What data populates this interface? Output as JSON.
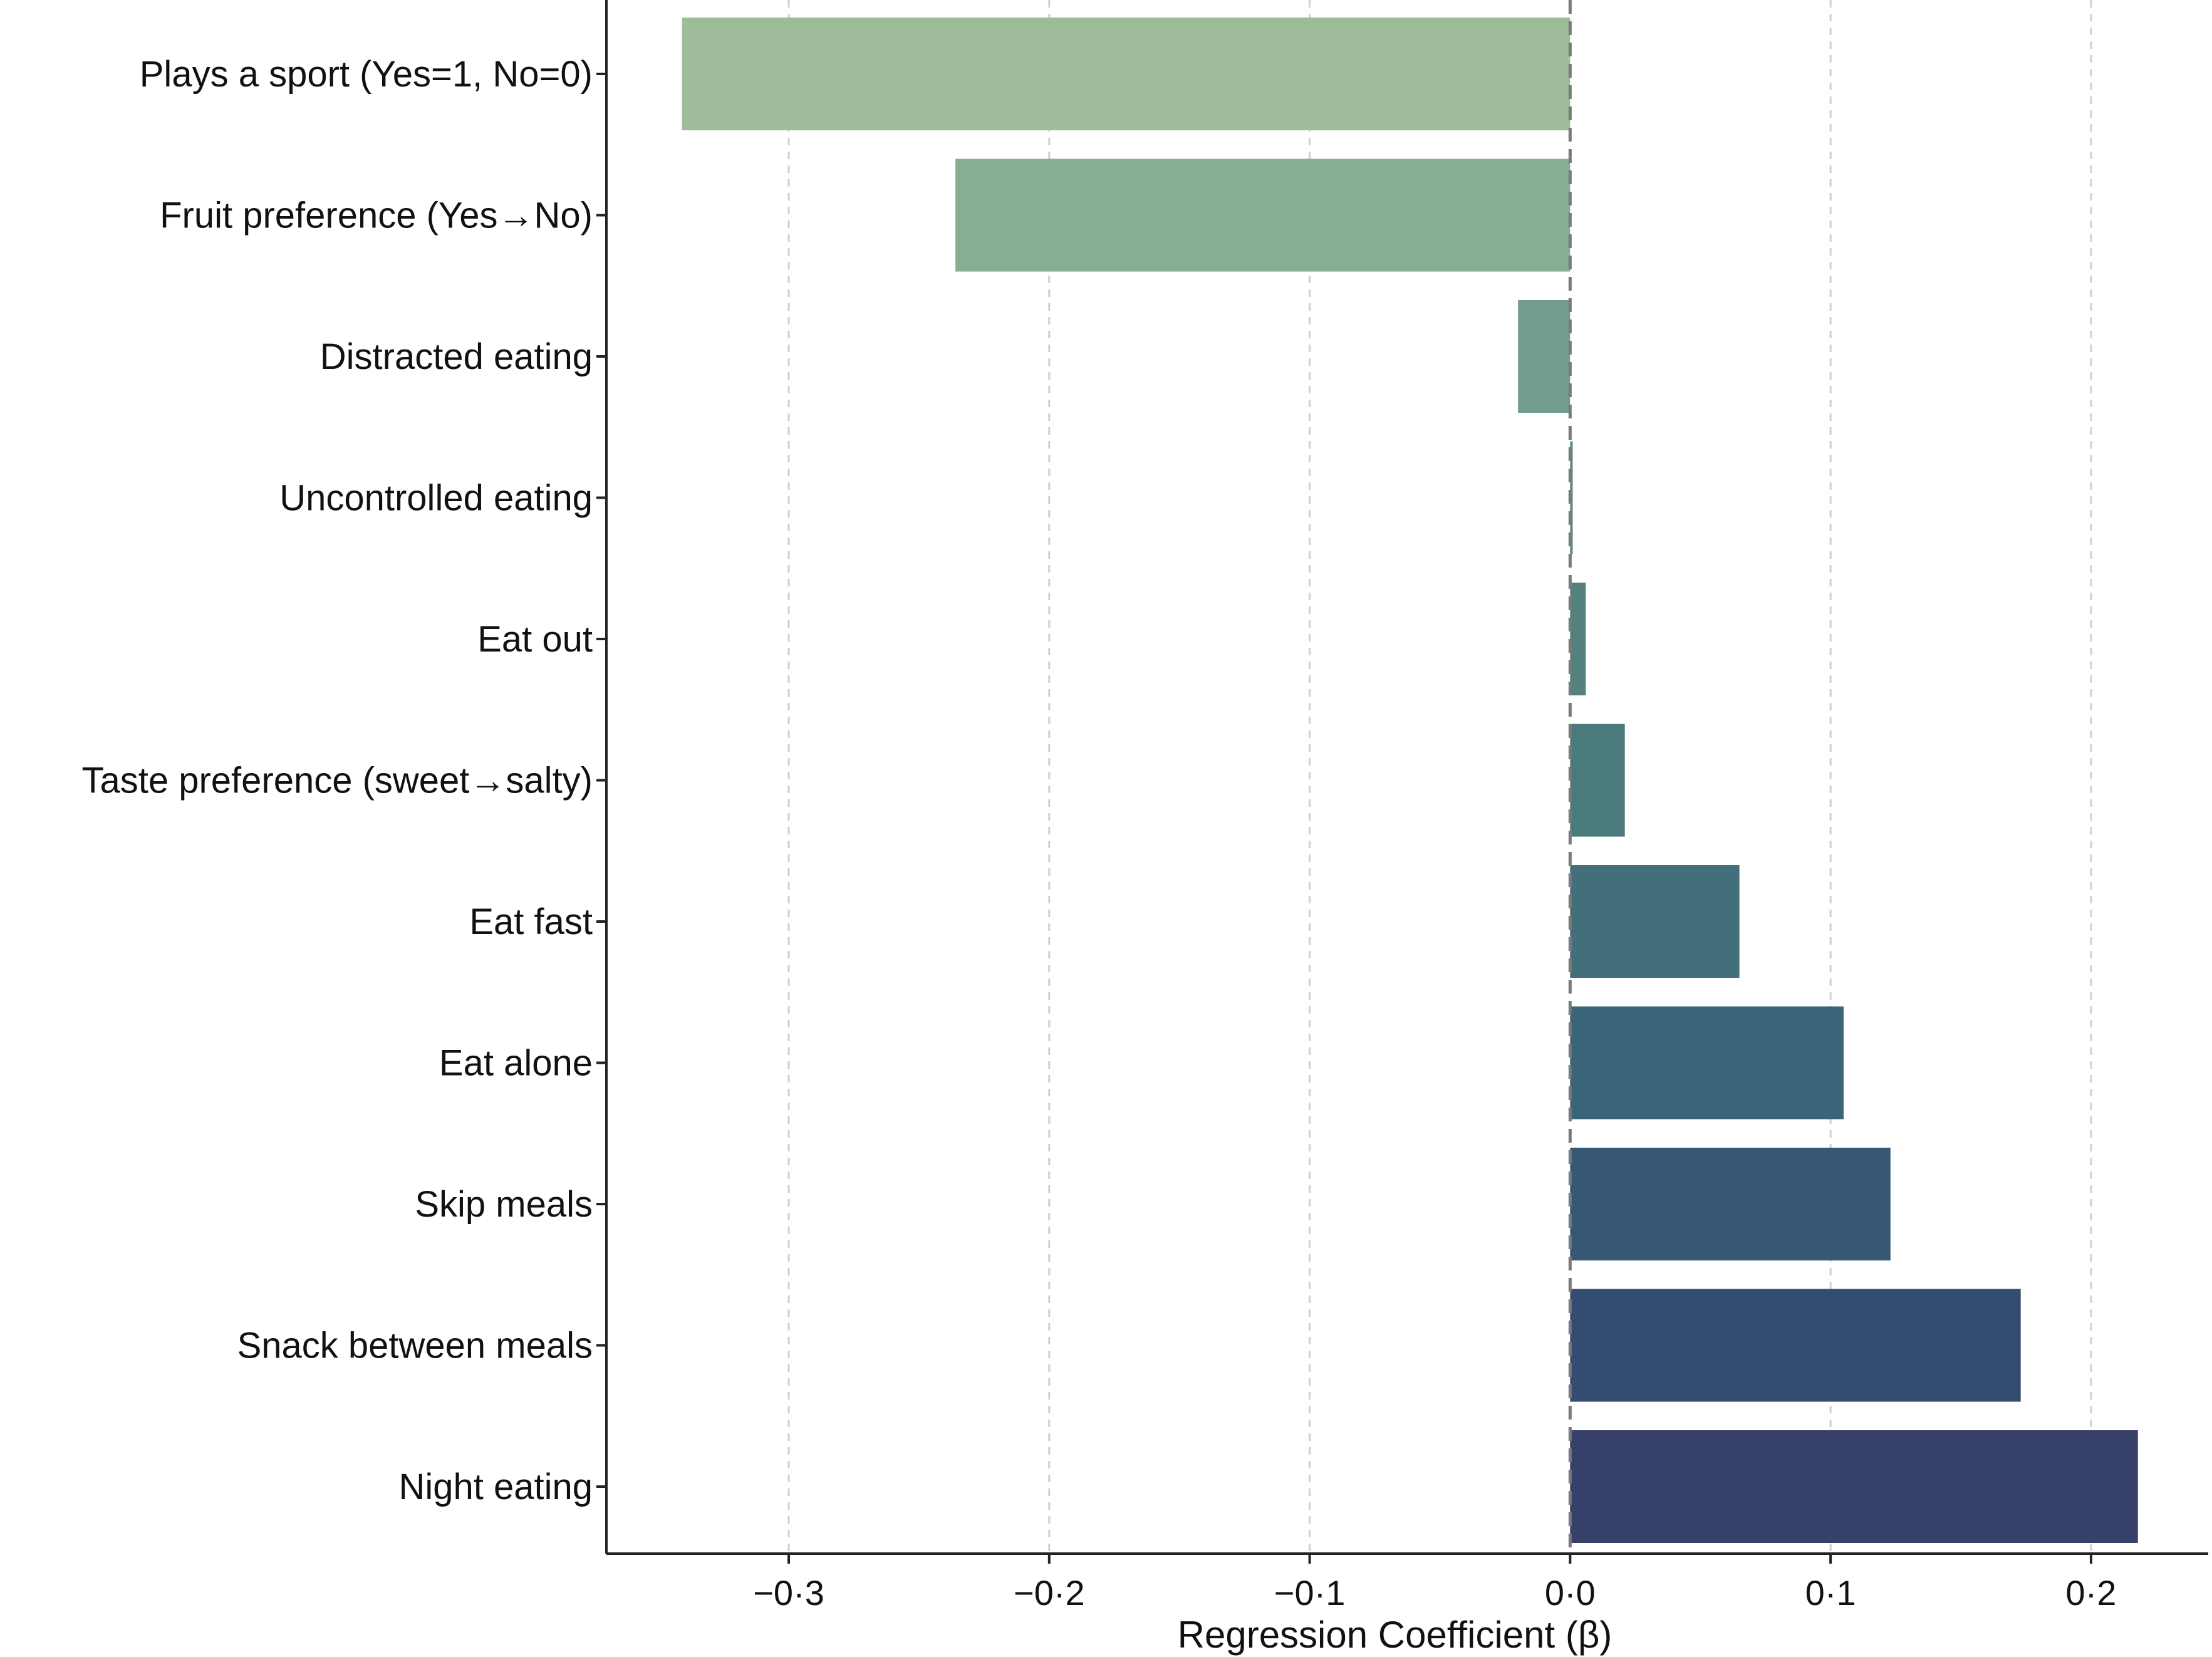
{
  "chart_data": {
    "type": "bar",
    "orientation": "horizontal",
    "categories": [
      "Plays a sport (Yes=1, No=0)",
      "Fruit preference (Yes→No)",
      "Distracted eating",
      "Uncontrolled eating",
      "Eat out",
      "Taste preference (sweet→salty)",
      "Eat fast",
      "Eat alone",
      "Skip meals",
      "Snack between meals",
      "Night eating"
    ],
    "values": [
      -0.341,
      -0.236,
      -0.02,
      0.001,
      0.006,
      0.021,
      0.065,
      0.105,
      0.123,
      0.173,
      0.218
    ],
    "colors": [
      "#9ebc9a",
      "#87ad92",
      "#729d8e",
      "#5f8a86",
      "#54807f",
      "#4a7a7c",
      "#436f7b",
      "#3c6479",
      "#375874",
      "#354c71",
      "#364068"
    ],
    "xlabel": "Regression Coefficient (β)",
    "ylabel": "",
    "title": "",
    "xlim": [
      -0.37,
      0.245
    ],
    "xticks": [
      -0.3,
      -0.2,
      -0.1,
      0.0,
      0.1,
      0.2
    ],
    "xtick_labels": [
      "−0·3",
      "−0·2",
      "−0·1",
      "0·0",
      "0·1",
      "0·2"
    ],
    "grid": "x-dashed",
    "reference_line": 0.0
  }
}
